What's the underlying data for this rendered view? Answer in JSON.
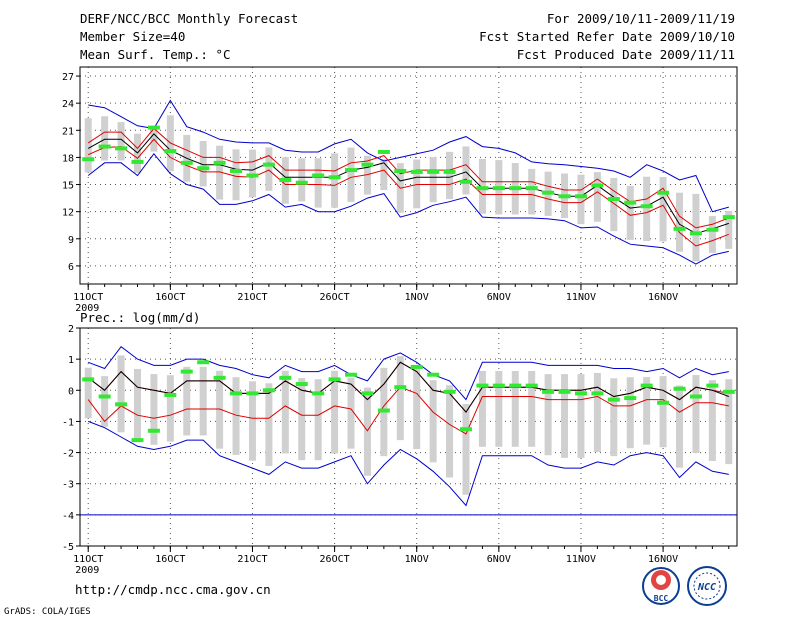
{
  "header": {
    "title": "DERF/NCC/BCC Monthly Forecast",
    "member_size": "Member Size=40",
    "variable": "Mean Surf. Temp.: °C",
    "period": "For 2009/10/11-2009/11/19",
    "started": "Fcst Started Refer Date 2009/10/10",
    "produced": "Fcst Produced Date 2009/11/11"
  },
  "footer": {
    "url": "http://cmdp.ncc.cma.gov.cn",
    "grads": "GrADS: COLA/IGES",
    "logo_bcc": "BCC",
    "logo_ncc": "NCC"
  },
  "colors": {
    "mean": "#000000",
    "spread": "#e00000",
    "extreme": "#0000cc",
    "box": "#d0d0d0",
    "obs": "#33e833",
    "grid": "#555555"
  },
  "chart_data": [
    {
      "type": "box",
      "title": "Mean Surf. Temp.: °C",
      "x_tick_labels": [
        "11OCT",
        "16OCT",
        "21OCT",
        "26OCT",
        "1NOV",
        "6NOV",
        "11NOV",
        "16NOV"
      ],
      "x_sub_label": "2009",
      "ylim": [
        4,
        28
      ],
      "yticks": [
        6,
        9,
        12,
        15,
        18,
        21,
        24,
        27
      ],
      "grid": true,
      "days": 40,
      "series": [
        {
          "name": "max",
          "values": [
            23.8,
            23.5,
            22.5,
            21.5,
            21.2,
            24.3,
            21.4,
            20.8,
            20.0,
            19.7,
            19.6,
            19.6,
            18.8,
            18.6,
            18.6,
            19.5,
            20.0,
            18.5,
            17.6,
            18.0,
            18.4,
            18.8,
            19.7,
            20.3,
            19.2,
            19.0,
            18.5,
            17.5,
            17.3,
            17.2,
            17.0,
            16.8,
            16.5,
            15.8,
            17.2,
            16.5,
            15.5,
            16.0,
            12.0,
            12.5
          ]
        },
        {
          "name": "upper",
          "values": [
            19.6,
            20.8,
            20.8,
            19.0,
            21.2,
            19.6,
            18.8,
            18.0,
            18.0,
            17.4,
            17.5,
            18.2,
            16.6,
            16.6,
            16.6,
            16.5,
            17.4,
            17.6,
            18.2,
            16.2,
            16.6,
            16.6,
            16.6,
            17.2,
            15.3,
            15.3,
            15.3,
            15.3,
            14.8,
            14.4,
            14.4,
            15.6,
            14.3,
            13.1,
            13.4,
            14.6,
            11.5,
            10.2,
            10.6,
            11.3
          ]
        },
        {
          "name": "mean",
          "values": [
            19.0,
            20.0,
            20.0,
            18.5,
            20.6,
            18.8,
            17.9,
            17.2,
            17.2,
            16.7,
            16.6,
            17.4,
            15.8,
            15.8,
            15.8,
            15.8,
            16.6,
            16.9,
            17.4,
            15.4,
            15.8,
            15.8,
            15.8,
            16.4,
            14.6,
            14.6,
            14.6,
            14.6,
            14.1,
            13.7,
            13.7,
            14.9,
            13.6,
            12.4,
            12.6,
            13.6,
            10.6,
            9.6,
            10.1,
            10.7
          ]
        },
        {
          "name": "lower",
          "values": [
            18.3,
            19.1,
            19.2,
            17.9,
            20.0,
            18.0,
            17.1,
            16.4,
            16.4,
            15.9,
            15.8,
            16.6,
            15.0,
            15.0,
            15.0,
            14.9,
            15.8,
            16.1,
            16.6,
            14.6,
            15.0,
            15.0,
            15.0,
            15.6,
            13.9,
            13.9,
            13.9,
            13.9,
            13.4,
            13.0,
            13.0,
            14.2,
            12.9,
            11.6,
            11.9,
            12.7,
            9.7,
            8.2,
            8.8,
            9.5
          ]
        },
        {
          "name": "min",
          "values": [
            16.0,
            17.4,
            17.4,
            16.0,
            18.4,
            16.2,
            15.0,
            14.5,
            12.8,
            12.8,
            13.2,
            13.9,
            12.5,
            12.8,
            12.0,
            12.0,
            12.6,
            13.5,
            14.0,
            11.4,
            11.9,
            12.7,
            13.1,
            13.6,
            11.4,
            11.3,
            11.3,
            11.3,
            11.2,
            11.0,
            10.2,
            10.3,
            9.3,
            8.4,
            8.2,
            8.0,
            7.2,
            6.2,
            7.2,
            7.6
          ]
        },
        {
          "name": "obs",
          "values": [
            17.8,
            19.2,
            19.0,
            17.5,
            21.3,
            18.7,
            17.4,
            16.8,
            17.4,
            16.5,
            16.0,
            17.2,
            15.5,
            15.2,
            16.0,
            15.8,
            16.6,
            17.2,
            18.6,
            16.5,
            16.4,
            16.4,
            16.4,
            15.3,
            14.6,
            14.6,
            14.6,
            14.6,
            14.1,
            13.7,
            13.7,
            14.9,
            13.4,
            13.0,
            12.6,
            14.1,
            10.1,
            9.6,
            10.0,
            11.4
          ]
        }
      ]
    },
    {
      "type": "box",
      "title": "Prec.: log(mm/d)",
      "x_tick_labels": [
        "11OCT",
        "16OCT",
        "21OCT",
        "26OCT",
        "1NOV",
        "6NOV",
        "11NOV",
        "16NOV"
      ],
      "x_sub_label": "2009",
      "ylim": [
        -5,
        2
      ],
      "yticks": [
        -5,
        -4,
        -3,
        -2,
        -1,
        0,
        1,
        2
      ],
      "grid": true,
      "days": 40,
      "series": [
        {
          "name": "max",
          "values": [
            0.9,
            0.7,
            1.4,
            1.0,
            0.8,
            0.8,
            1.0,
            1.0,
            0.8,
            0.7,
            0.5,
            0.4,
            0.8,
            0.6,
            0.6,
            0.8,
            0.5,
            0.3,
            1.0,
            1.2,
            0.9,
            0.5,
            0.3,
            -0.3,
            0.9,
            0.9,
            0.9,
            0.9,
            0.8,
            0.8,
            0.8,
            0.8,
            0.7,
            0.7,
            0.6,
            0.7,
            0.4,
            0.7,
            0.5,
            0.6
          ]
        },
        {
          "name": "upper",
          "values": [
            0.4,
            0.0,
            0.6,
            0.1,
            0.0,
            -0.1,
            0.3,
            0.3,
            0.3,
            -0.1,
            -0.1,
            -0.1,
            0.3,
            0.0,
            -0.1,
            0.3,
            0.2,
            -0.3,
            0.2,
            0.9,
            0.6,
            0.0,
            -0.1,
            -0.7,
            0.1,
            0.1,
            0.1,
            0.1,
            0.0,
            0.0,
            0.0,
            0.1,
            -0.2,
            -0.1,
            0.1,
            0.0,
            -0.3,
            0.1,
            0.0,
            -0.1
          ]
        },
        {
          "name": "mean",
          "values": [
            0.4,
            0.0,
            0.6,
            0.1,
            0.0,
            -0.1,
            0.3,
            0.3,
            0.3,
            -0.1,
            -0.1,
            -0.1,
            0.3,
            0.0,
            -0.1,
            0.3,
            0.2,
            -0.3,
            0.2,
            0.9,
            0.6,
            0.0,
            -0.1,
            -0.7,
            0.1,
            0.1,
            0.1,
            0.1,
            0.0,
            0.0,
            0.0,
            0.1,
            -0.2,
            -0.1,
            0.1,
            0.0,
            -0.3,
            0.1,
            0.0,
            -0.2
          ]
        },
        {
          "name": "lower",
          "values": [
            -0.3,
            -1.0,
            -0.5,
            -0.8,
            -0.9,
            -0.8,
            -0.6,
            -0.6,
            -0.6,
            -0.8,
            -0.9,
            -0.9,
            -0.5,
            -0.8,
            -0.8,
            -0.5,
            -0.6,
            -1.3,
            -0.5,
            0.1,
            -0.1,
            -0.7,
            -1.1,
            -1.4,
            -0.2,
            -0.2,
            -0.2,
            -0.2,
            -0.3,
            -0.3,
            -0.3,
            -0.2,
            -0.5,
            -0.5,
            -0.3,
            -0.3,
            -0.7,
            -0.4,
            -0.4,
            -0.5
          ]
        },
        {
          "name": "min",
          "values": [
            -1.0,
            -1.2,
            -1.5,
            -1.8,
            -1.9,
            -1.8,
            -1.6,
            -1.6,
            -2.1,
            -2.3,
            -2.5,
            -2.7,
            -2.3,
            -2.5,
            -2.5,
            -2.3,
            -2.1,
            -3.0,
            -2.4,
            -1.9,
            -2.2,
            -2.6,
            -3.1,
            -3.7,
            -2.1,
            -2.1,
            -2.1,
            -2.1,
            -2.4,
            -2.5,
            -2.5,
            -2.3,
            -2.4,
            -2.1,
            -2.0,
            -2.1,
            -2.8,
            -2.3,
            -2.6,
            -2.7
          ]
        },
        {
          "name": "obs",
          "values": [
            0.35,
            -0.2,
            -0.45,
            -1.6,
            -1.3,
            -0.15,
            0.6,
            0.9,
            0.4,
            -0.1,
            -0.1,
            0.0,
            0.4,
            0.2,
            -0.1,
            0.35,
            0.5,
            -0.1,
            -0.65,
            0.1,
            0.75,
            0.5,
            -0.05,
            -1.25,
            0.15,
            0.15,
            0.15,
            0.15,
            -0.05,
            -0.05,
            -0.1,
            -0.1,
            -0.3,
            -0.25,
            0.15,
            -0.4,
            0.05,
            -0.2,
            0.15,
            -0.05
          ]
        }
      ]
    }
  ]
}
